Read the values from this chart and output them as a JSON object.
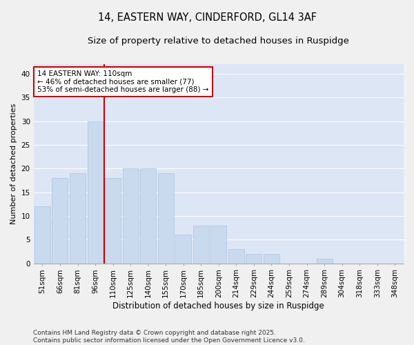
{
  "title1": "14, EASTERN WAY, CINDERFORD, GL14 3AF",
  "title2": "Size of property relative to detached houses in Ruspidge",
  "xlabel": "Distribution of detached houses by size in Ruspidge",
  "ylabel": "Number of detached properties",
  "categories": [
    "51sqm",
    "66sqm",
    "81sqm",
    "96sqm",
    "110sqm",
    "125sqm",
    "140sqm",
    "155sqm",
    "170sqm",
    "185sqm",
    "200sqm",
    "214sqm",
    "229sqm",
    "244sqm",
    "259sqm",
    "274sqm",
    "289sqm",
    "304sqm",
    "318sqm",
    "333sqm",
    "348sqm"
  ],
  "values": [
    12,
    18,
    19,
    30,
    18,
    20,
    20,
    19,
    6,
    8,
    8,
    3,
    2,
    2,
    0,
    0,
    1,
    0,
    0,
    0,
    0
  ],
  "bar_color": "#c9d9ee",
  "bar_edge_color": "#b0c4de",
  "vline_color": "#cc0000",
  "vline_x_idx": 3.5,
  "annotation_text": "14 EASTERN WAY: 110sqm\n← 46% of detached houses are smaller (77)\n53% of semi-detached houses are larger (88) →",
  "annotation_box_facecolor": "#ffffff",
  "annotation_box_edgecolor": "#cc0000",
  "ylim": [
    0,
    42
  ],
  "yticks": [
    0,
    5,
    10,
    15,
    20,
    25,
    30,
    35,
    40
  ],
  "fig_bg_color": "#f0f0f0",
  "plot_bg_color": "#dce6f5",
  "grid_color": "#ffffff",
  "footer_text": "Contains HM Land Registry data © Crown copyright and database right 2025.\nContains public sector information licensed under the Open Government Licence v3.0.",
  "title1_fontsize": 10.5,
  "title2_fontsize": 9.5,
  "xlabel_fontsize": 8.5,
  "ylabel_fontsize": 8,
  "tick_fontsize": 7.5,
  "annotation_fontsize": 7.5,
  "footer_fontsize": 6.5
}
